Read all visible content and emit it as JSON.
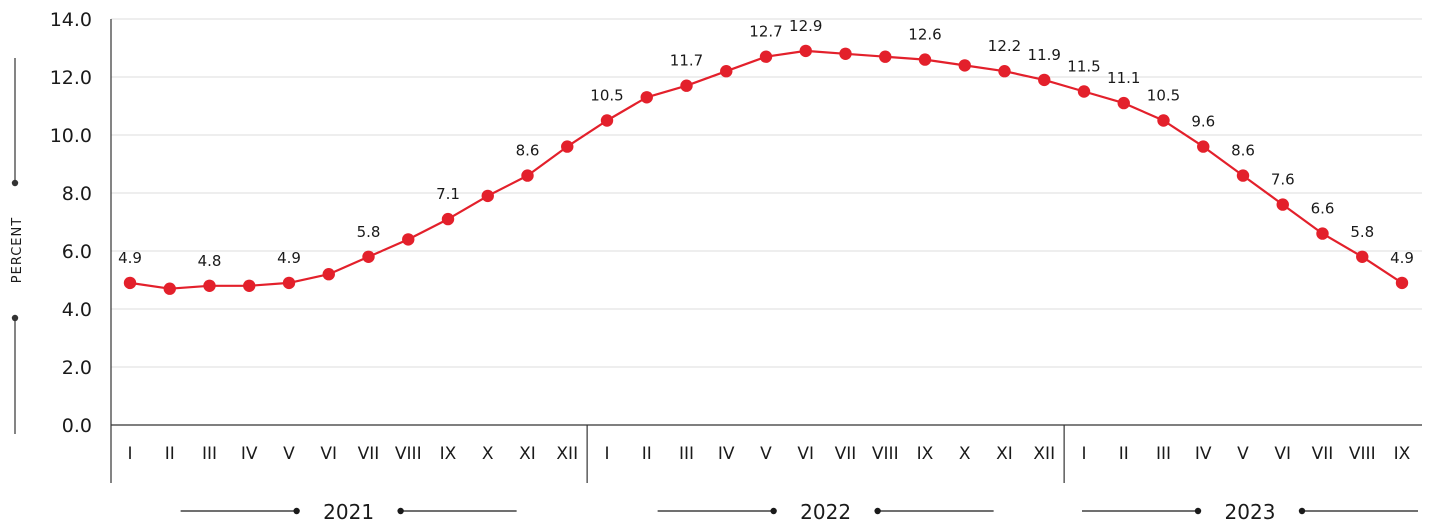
{
  "chart_data": {
    "type": "line",
    "ylabel": "PERCENT",
    "ylim": [
      0,
      14
    ],
    "yticks": [
      "0.0",
      "2.0",
      "4.0",
      "6.0",
      "8.0",
      "10.0",
      "12.0",
      "14.0"
    ],
    "grid": true,
    "colors": {
      "series": "#e3202b",
      "grid": "#dcdcdc",
      "axis": "#333333"
    },
    "months": [
      "I",
      "II",
      "III",
      "IV",
      "V",
      "VI",
      "VII",
      "VIII",
      "IX",
      "X",
      "XI",
      "XII",
      "I",
      "II",
      "III",
      "IV",
      "V",
      "VI",
      "VII",
      "VIII",
      "IX",
      "X",
      "XI",
      "XII",
      "I",
      "II",
      "III",
      "IV",
      "V",
      "VI",
      "VII",
      "VIII",
      "IX"
    ],
    "years": [
      {
        "label": "2021",
        "months": 12
      },
      {
        "label": "2022",
        "months": 12
      },
      {
        "label": "2023",
        "months": 9
      }
    ],
    "series": [
      {
        "values": [
          4.9,
          4.7,
          4.8,
          4.8,
          4.9,
          5.2,
          5.8,
          6.4,
          7.1,
          7.9,
          8.6,
          9.6,
          10.5,
          11.3,
          11.7,
          12.2,
          12.7,
          12.9,
          12.8,
          12.7,
          12.6,
          12.4,
          12.2,
          11.9,
          11.5,
          11.1,
          10.5,
          9.6,
          8.6,
          7.6,
          6.6,
          5.8,
          4.9
        ],
        "labels": [
          "4.9",
          "",
          "4.8",
          "",
          "4.9",
          "",
          "5.8",
          "",
          "7.1",
          "",
          "8.6",
          "",
          "10.5",
          "",
          "11.7",
          "",
          "12.7",
          "12.9",
          "",
          "",
          "12.6",
          "",
          "12.2",
          "11.9",
          "11.5",
          "11.1",
          "10.5",
          "9.6",
          "8.6",
          "7.6",
          "6.6",
          "5.8",
          "4.9"
        ]
      }
    ]
  }
}
